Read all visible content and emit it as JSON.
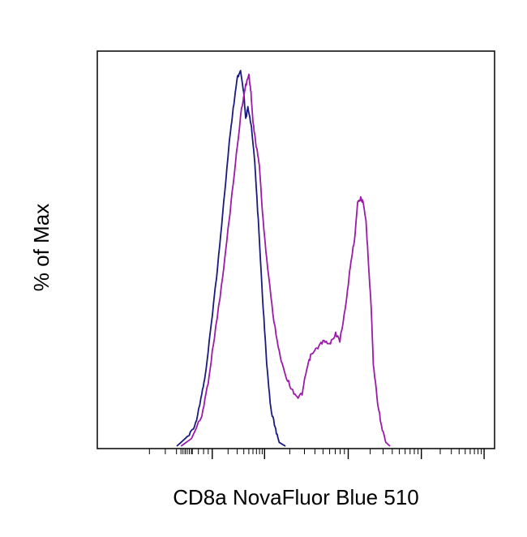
{
  "chart_data": {
    "type": "line",
    "xlabel": "CD8a NovaFluor Blue 510",
    "ylabel": "% of Max",
    "x_scale": "biexponential",
    "y_ticks_labeled": false,
    "x_ticks_labeled": false,
    "ylim": [
      0,
      100
    ],
    "series": [
      {
        "color": "#1a1a7e",
        "points": [
          [
            0.38,
            0
          ],
          [
            0.44,
            3
          ],
          [
            0.47,
            6
          ],
          [
            0.5,
            14
          ],
          [
            0.52,
            20
          ],
          [
            0.55,
            35
          ],
          [
            0.57,
            45
          ],
          [
            0.6,
            62
          ],
          [
            0.63,
            80
          ],
          [
            0.65,
            90
          ],
          [
            0.67,
            98
          ],
          [
            0.685,
            100
          ],
          [
            0.7,
            94
          ],
          [
            0.71,
            87
          ],
          [
            0.72,
            90
          ],
          [
            0.735,
            86
          ],
          [
            0.75,
            78
          ],
          [
            0.77,
            60
          ],
          [
            0.79,
            40
          ],
          [
            0.81,
            22
          ],
          [
            0.83,
            10
          ],
          [
            0.85,
            5
          ],
          [
            0.87,
            1
          ],
          [
            0.9,
            0
          ]
        ]
      },
      {
        "color": "#9b1aa8",
        "points": [
          [
            0.4,
            0
          ],
          [
            0.45,
            2
          ],
          [
            0.5,
            8
          ],
          [
            0.53,
            17
          ],
          [
            0.56,
            29
          ],
          [
            0.6,
            45
          ],
          [
            0.63,
            60
          ],
          [
            0.66,
            75
          ],
          [
            0.69,
            90
          ],
          [
            0.71,
            96
          ],
          [
            0.725,
            99
          ],
          [
            0.735,
            94
          ],
          [
            0.745,
            86
          ],
          [
            0.76,
            80
          ],
          [
            0.775,
            75
          ],
          [
            0.79,
            62
          ],
          [
            0.81,
            50
          ],
          [
            0.84,
            35
          ],
          [
            0.87,
            25
          ],
          [
            0.9,
            19
          ],
          [
            0.93,
            15
          ],
          [
            0.96,
            13
          ],
          [
            0.98,
            14
          ],
          [
            1.0,
            20
          ],
          [
            1.02,
            24
          ],
          [
            1.05,
            26
          ],
          [
            1.08,
            28
          ],
          [
            1.11,
            27
          ],
          [
            1.14,
            30
          ],
          [
            1.16,
            28
          ],
          [
            1.19,
            38
          ],
          [
            1.21,
            48
          ],
          [
            1.23,
            55
          ],
          [
            1.245,
            65
          ],
          [
            1.26,
            66
          ],
          [
            1.27,
            65
          ],
          [
            1.285,
            60
          ],
          [
            1.3,
            46
          ],
          [
            1.31,
            37
          ],
          [
            1.32,
            22
          ],
          [
            1.34,
            12
          ],
          [
            1.36,
            5
          ],
          [
            1.38,
            1
          ],
          [
            1.4,
            0
          ]
        ]
      }
    ]
  }
}
